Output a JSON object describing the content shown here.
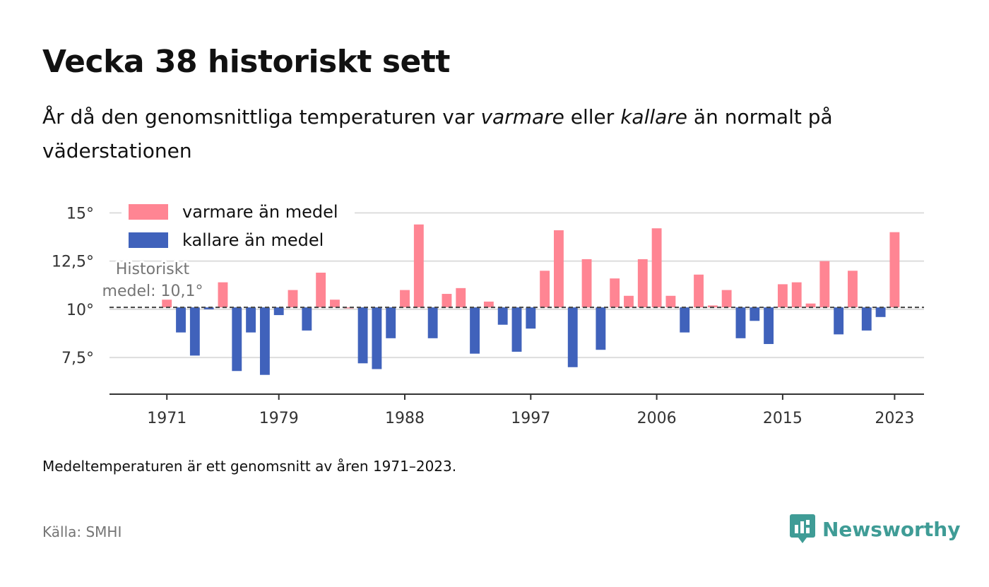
{
  "title": "Vecka 38 historiskt sett",
  "subtitle": {
    "part1": "År då den genomsnittliga temperaturen var ",
    "warm_word": "varmare",
    "part2": " eller ",
    "cold_word": "kallare",
    "part3": " än normalt på väderstationen"
  },
  "note": "Medeltemperaturen är ett genomsnitt av åren 1971–2023.",
  "source": "Källa: SMHI",
  "logo": {
    "text": "Newsworthy",
    "icon": "newsworthy-logo-icon",
    "color": "#3f9c96"
  },
  "chart_data": {
    "type": "bar",
    "baseline": 10.1,
    "baseline_label_line1": "Historiskt",
    "baseline_label_line2": "medel: 10,1°",
    "ylim": [
      5.6,
      15.6
    ],
    "y_ticks": [
      7.5,
      10,
      12.5,
      15
    ],
    "y_tick_labels": [
      "7,5°",
      "10°",
      "12,5°",
      "15°"
    ],
    "x_ticks": [
      1971,
      1979,
      1988,
      1997,
      2006,
      2015,
      2023
    ],
    "x_tick_labels": [
      "1971",
      "1979",
      "1988",
      "1997",
      "2006",
      "2015",
      "2023"
    ],
    "xlim": [
      1966.9,
      2025.1
    ],
    "colors": {
      "warm": "#ff8593",
      "cold": "#4062bb"
    },
    "legend": [
      {
        "name": "varmare än medel",
        "color": "#ff8593"
      },
      {
        "name": "kallare än medel",
        "color": "#4062bb"
      }
    ],
    "legend_position": "top-left",
    "grid": true,
    "x": [
      1971,
      1972,
      1973,
      1974,
      1975,
      1976,
      1977,
      1978,
      1979,
      1980,
      1981,
      1982,
      1983,
      1984,
      1985,
      1986,
      1987,
      1988,
      1989,
      1990,
      1991,
      1992,
      1993,
      1994,
      1995,
      1996,
      1997,
      1998,
      1999,
      2000,
      2001,
      2002,
      2003,
      2004,
      2005,
      2006,
      2007,
      2008,
      2009,
      2010,
      2011,
      2012,
      2013,
      2014,
      2015,
      2016,
      2017,
      2018,
      2019,
      2020,
      2021,
      2022,
      2023
    ],
    "values": [
      10.5,
      8.8,
      7.6,
      10.0,
      11.4,
      6.8,
      8.8,
      6.6,
      9.7,
      11.0,
      8.9,
      11.9,
      10.5,
      10.1,
      7.2,
      6.9,
      8.5,
      11.0,
      14.4,
      8.5,
      10.8,
      11.1,
      7.7,
      10.4,
      9.2,
      7.8,
      9.0,
      12.0,
      14.1,
      7.0,
      12.6,
      7.9,
      11.6,
      10.7,
      12.6,
      14.2,
      10.7,
      8.8,
      11.8,
      10.2,
      11.0,
      8.5,
      9.4,
      8.2,
      11.3,
      11.4,
      10.3,
      12.5,
      8.7,
      12.0,
      8.9,
      9.6,
      14.0
    ]
  }
}
